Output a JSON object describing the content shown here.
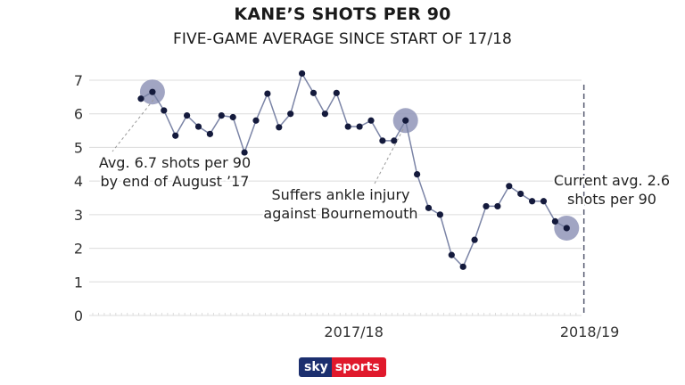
{
  "title": "KANE’S SHOTS PER 90",
  "subtitle": "FIVE-GAME AVERAGE SINCE START OF 17/18",
  "logo": {
    "part1": "sky",
    "part2": "sports",
    "colors": {
      "sky": "#1c2f6e",
      "sports": "#e0192c"
    }
  },
  "chart_data": {
    "type": "line",
    "title": "KANE’S SHOTS PER 90",
    "subtitle": "FIVE-GAME AVERAGE SINCE START OF 17/18",
    "ylim": [
      0,
      7
    ],
    "yticks": [
      0,
      1,
      2,
      3,
      4,
      5,
      6,
      7
    ],
    "season_labels": [
      "2017/18",
      "2018/19"
    ],
    "season_label_index": [
      18.5,
      39
    ],
    "divider_after_index": 38.5,
    "grid": true,
    "line_color": "#7b84a6",
    "marker_color": "#141a3c",
    "highlight_color": "#9095b8",
    "series": [
      {
        "values": [
          6.45,
          6.65,
          6.1,
          5.35,
          5.95,
          5.62,
          5.4,
          5.95,
          5.9,
          4.85,
          5.8,
          6.6,
          5.6,
          6.0,
          7.2,
          6.62,
          6.0,
          6.62,
          5.62,
          5.62,
          5.8,
          5.2,
          5.2,
          5.8,
          4.2,
          3.2,
          3.0,
          1.8,
          1.45,
          2.25,
          3.25,
          3.25,
          3.85,
          3.62,
          3.4,
          3.4,
          2.8,
          2.6
        ]
      }
    ],
    "highlights": [
      1,
      23,
      37
    ],
    "annotations": [
      {
        "lines": [
          "Avg. 6.7 shots per 90",
          "by end of August ’17"
        ],
        "index": 1
      },
      {
        "lines": [
          "Suffers ankle injury",
          "against Bournemouth"
        ],
        "index": 23
      },
      {
        "lines": [
          "Current avg. 2.6",
          "shots per 90"
        ],
        "index": 37
      }
    ]
  }
}
